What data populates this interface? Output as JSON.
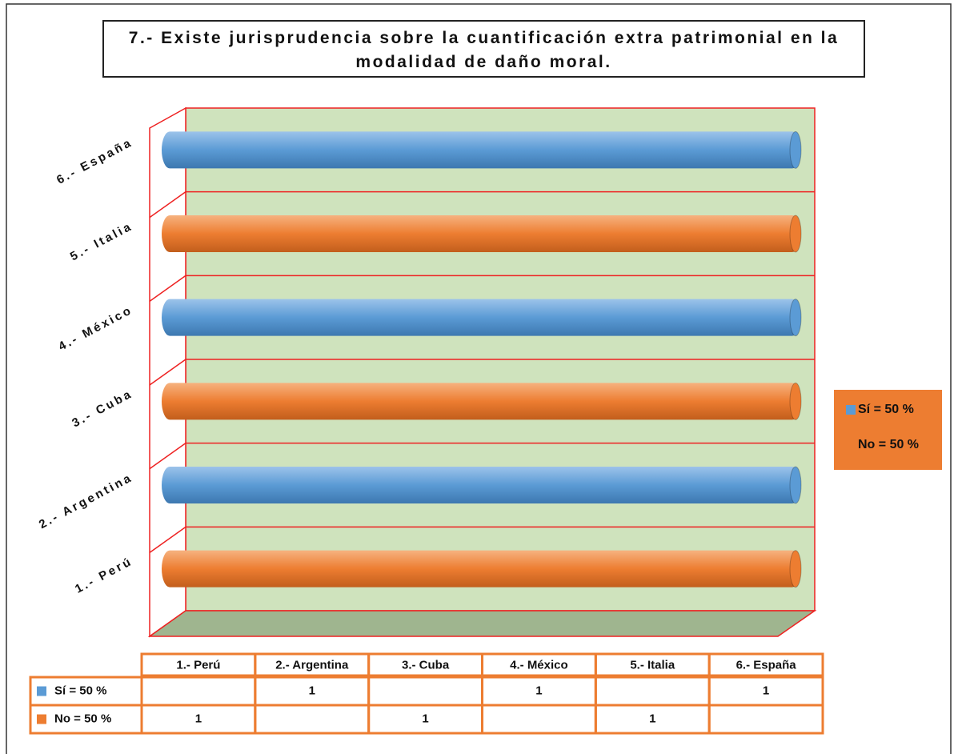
{
  "chart_data": {
    "type": "bar",
    "orientation": "horizontal",
    "title": "7.- Existe jurisprudencia sobre la cuantificación extra patrimonial en la modalidad de daño moral.",
    "categories": [
      "1.- Perú",
      "2.- Argentina",
      "3.- Cuba",
      "4.- México",
      "5.- Italia",
      "6.- España"
    ],
    "series": [
      {
        "name": "Sí = 50 %",
        "color": "#5b9bd5",
        "values": [
          null,
          1,
          null,
          1,
          null,
          1
        ]
      },
      {
        "name": "No = 50 %",
        "color": "#ed7d31",
        "values": [
          1,
          null,
          1,
          null,
          1,
          null
        ]
      }
    ],
    "xlim": [
      0,
      1
    ],
    "grid": true,
    "legend": "right",
    "data_table": true
  }
}
